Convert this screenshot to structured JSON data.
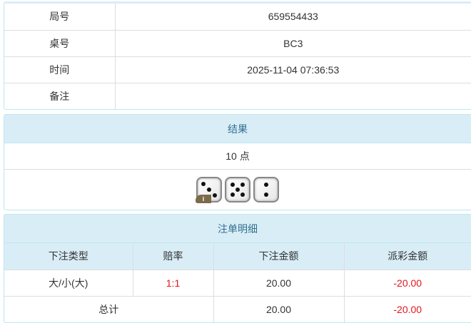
{
  "info": [
    {
      "label": "局号",
      "value": "659554433"
    },
    {
      "label": "桌号",
      "value": "BC3"
    },
    {
      "label": "时间",
      "value": "2025-11-04 07:36:53"
    },
    {
      "label": "备注",
      "value": ""
    }
  ],
  "result": {
    "title": "结果",
    "points": "10 点",
    "dice": [
      3,
      5,
      2
    ],
    "badge": "i"
  },
  "bets": {
    "title": "注单明细",
    "headers": [
      "下注类型",
      "赔率",
      "下注金额",
      "派彩金额"
    ],
    "rows": [
      {
        "type": "大/小(大)",
        "odds": "1:1",
        "amount": "20.00",
        "payout": "-20.00"
      }
    ],
    "total": {
      "label": "总计",
      "amount": "20.00",
      "payout": "-20.00"
    }
  },
  "colors": {
    "header_bg": "#d9edf7",
    "header_text": "#31708f",
    "negative": "#e4151d"
  }
}
